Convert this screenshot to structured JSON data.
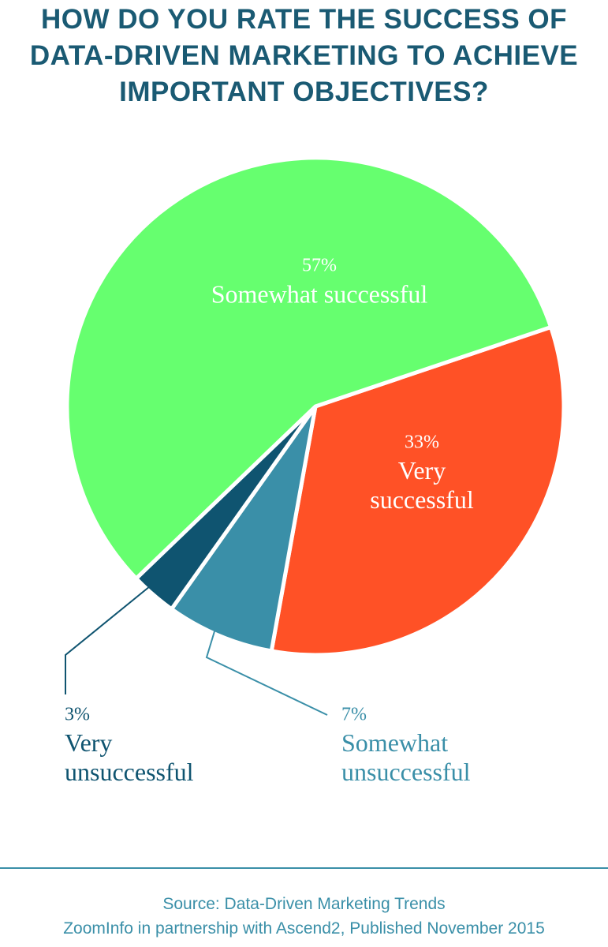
{
  "chart_data": {
    "type": "pie",
    "title": "HOW DO YOU RATE THE SUCCESS OF DATA-DRIVEN MARKETING TO ACHIEVE IMPORTANT OBJECTIVES?",
    "categories": [
      "Very successful",
      "Somewhat unsuccessful",
      "Very unsuccessful",
      "Somewhat successful"
    ],
    "values": [
      33,
      7,
      3,
      57
    ],
    "value_labels": [
      "33%",
      "7%",
      "3%",
      "57%"
    ],
    "colors": [
      "#ff5126",
      "#3a8fa8",
      "#0f5470",
      "#66ff6f"
    ],
    "source": [
      "Source: Data-Driven Marketing Trends",
      "ZoomInfo in partnership with Ascend2, Published November 2015"
    ]
  }
}
